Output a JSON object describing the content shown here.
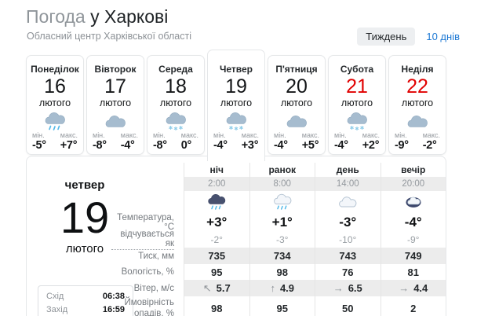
{
  "colors": {
    "accent_red": "#e10000",
    "link_blue": "#1c78d4"
  },
  "header": {
    "title_light": "Погода",
    "title_bold": "у Харкові",
    "subtitle": "Обласний центр Харківської області",
    "view_week": "Тиждень",
    "view_10days": "10 днів"
  },
  "tabs": [
    {
      "day": "Понеділок",
      "date": "16",
      "month": "лютого",
      "icon": "cloud-rain",
      "min_label": "мін.",
      "max_label": "макс.",
      "min": "-5°",
      "max": "+7°",
      "active": false,
      "weekend": false
    },
    {
      "day": "Вівторок",
      "date": "17",
      "month": "лютого",
      "icon": "cloud",
      "min_label": "мін.",
      "max_label": "макс.",
      "min": "-8°",
      "max": "-4°",
      "active": false,
      "weekend": false
    },
    {
      "day": "Середа",
      "date": "18",
      "month": "лютого",
      "icon": "cloud-snow",
      "min_label": "мін.",
      "max_label": "макс.",
      "min": "-8°",
      "max": "0°",
      "active": false,
      "weekend": false
    },
    {
      "day": "Четвер",
      "date": "19",
      "month": "лютого",
      "icon": "cloud-snow",
      "min_label": "мін.",
      "max_label": "макс.",
      "min": "-4°",
      "max": "+3°",
      "active": true,
      "weekend": false
    },
    {
      "day": "П'ятниця",
      "date": "20",
      "month": "лютого",
      "icon": "cloud",
      "min_label": "мін.",
      "max_label": "макс.",
      "min": "-4°",
      "max": "+5°",
      "active": false,
      "weekend": false
    },
    {
      "day": "Субота",
      "date": "21",
      "month": "лютого",
      "icon": "cloud-snow",
      "min_label": "мін.",
      "max_label": "макс.",
      "min": "-4°",
      "max": "+2°",
      "active": false,
      "weekend": true
    },
    {
      "day": "Неділя",
      "date": "22",
      "month": "лютого",
      "icon": "cloud",
      "min_label": "мін.",
      "max_label": "макс.",
      "min": "-9°",
      "max": "-2°",
      "active": false,
      "weekend": true
    }
  ],
  "detail": {
    "day_name": "четвер",
    "day_number": "19",
    "month": "лютого",
    "sunrise_label": "Схід",
    "sunrise_time": "06:38",
    "sunset_label": "Захід",
    "sunset_time": "16:59"
  },
  "table": {
    "row_labels": {
      "temperature": "Температура, °C",
      "feels_like": "відчувається як",
      "pressure": "Тиск, мм",
      "humidity": "Вологість, %",
      "wind": "Вітер, м/с",
      "precipitation": "Ймовірність опадів, %"
    },
    "parts": [
      {
        "name": "ніч",
        "time": "2:00",
        "icon": "night-rain",
        "temp": "+3°",
        "feels": "-2°",
        "pressure": "735",
        "humidity": "95",
        "wind_dir": "↖",
        "wind": "5.7",
        "precip": "98"
      },
      {
        "name": "ранок",
        "time": "8:00",
        "icon": "cloud-rain-light",
        "temp": "+1°",
        "feels": "-3°",
        "pressure": "734",
        "humidity": "98",
        "wind_dir": "↑",
        "wind": "4.9",
        "precip": "95"
      },
      {
        "name": "день",
        "time": "14:00",
        "icon": "cloud-light",
        "temp": "-3°",
        "feels": "-10°",
        "pressure": "743",
        "humidity": "76",
        "wind_dir": "→",
        "wind": "6.5",
        "precip": "50"
      },
      {
        "name": "вечір",
        "time": "20:00",
        "icon": "night-cloud",
        "temp": "-4°",
        "feels": "-9°",
        "pressure": "749",
        "humidity": "81",
        "wind_dir": "→",
        "wind": "4.4",
        "precip": "2"
      }
    ]
  }
}
